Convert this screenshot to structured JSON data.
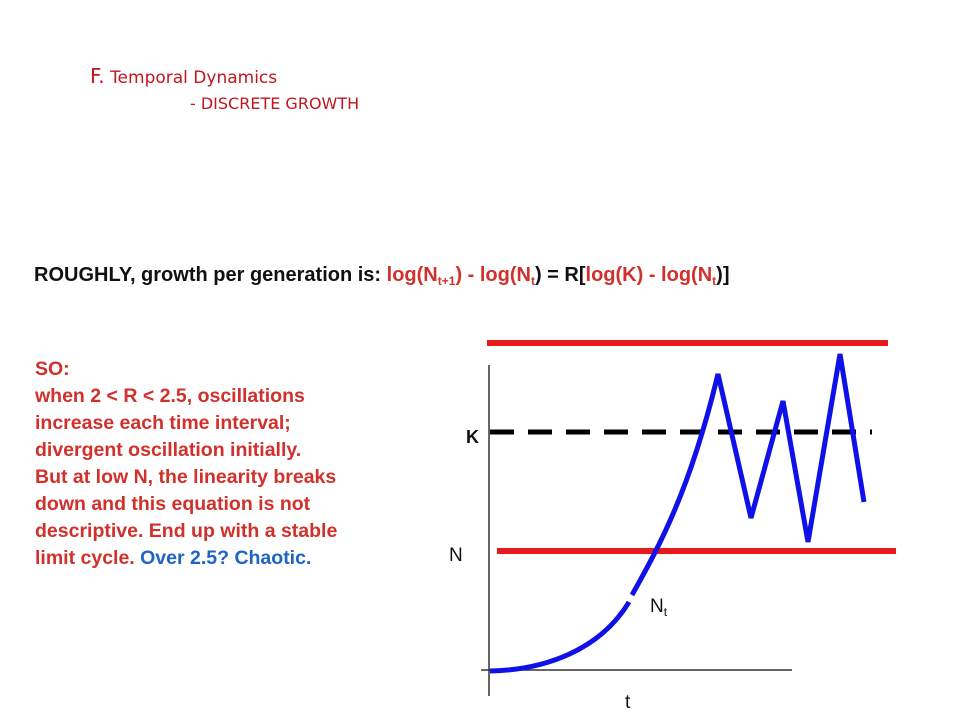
{
  "title": {
    "letter": "F.",
    "main": "Temporal Dynamics",
    "sub": "- DISCRETE GROWTH"
  },
  "equation": {
    "lead": "ROUGHLY, growth per generation is:",
    "log_open": "log(N",
    "sub_t1": "t+1",
    "mid": ") - log(N",
    "sub_t": "t",
    "eq": ") = R[",
    "logK": "log(K) - log(N",
    "sub_t2": "t",
    "close": ")]"
  },
  "explanation": {
    "lines": [
      "SO:",
      "when 2 < R < 2.5, oscillations",
      "increase each time interval;",
      "divergent oscillation initially.",
      "But at low N, the linearity breaks",
      "down and this equation is not",
      "descriptive. End up with a stable"
    ],
    "last_line_red": "limit cycle.",
    "last_line_blue": "Over 2.5? Chaotic."
  },
  "graph": {
    "k_label": "K",
    "n_label": "N",
    "nt_label": "N",
    "nt_sub": "t",
    "x_label": "t",
    "colors": {
      "limits": "#e8191c",
      "curve": "#1010e8",
      "carrying_capacity": "#000000",
      "axes": "#333333"
    }
  }
}
